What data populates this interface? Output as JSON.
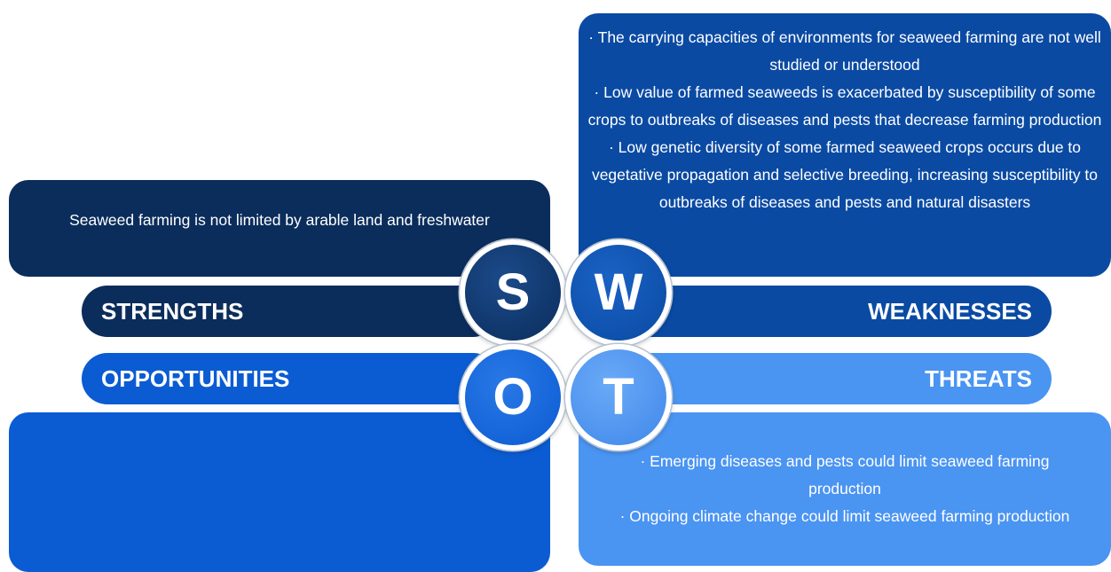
{
  "strengths": {
    "letter": "S",
    "label": "STRENGTHS",
    "items": [
      "Seaweed farming is not limited by arable land and freshwater"
    ]
  },
  "weaknesses": {
    "letter": "W",
    "label": "WEAKNESSES",
    "items": [
      "· The carrying capacities of environments for seaweed farming are not well studied or understood",
      "· Low value of farmed seaweeds is exacerbated by susceptibility of some crops to outbreaks of diseases and pests that decrease farming production",
      "· Low genetic diversity of some farmed seaweed crops occurs due to vegetative propagation and selective breeding, increasing susceptibility to outbreaks of diseases and pests and natural disasters"
    ]
  },
  "opportunities": {
    "letter": "O",
    "label": "OPPORTUNITIES"
  },
  "threats": {
    "letter": "T",
    "label": "THREATS",
    "items": [
      "· Emerging diseases and pests could limit seaweed farming production",
      "· Ongoing climate change could limit seaweed farming production"
    ]
  }
}
